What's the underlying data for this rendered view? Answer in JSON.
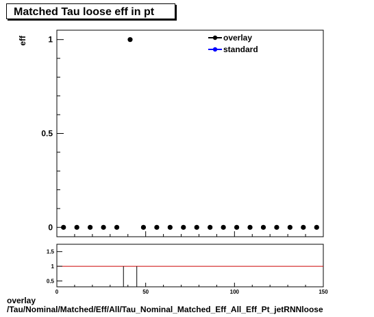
{
  "title": "Matched Tau loose eff in pt",
  "footer": {
    "line1": "overlay",
    "line2": "/Tau/Nominal/Matched/Eff/All/Tau_Nominal_Matched_Eff_All_Eff_Pt_jetRNNloose"
  },
  "colors": {
    "overlay": "#000000",
    "standard": "#0000ff",
    "ratio_line": "#cc0000",
    "frame": "#000000"
  },
  "chart_data": [
    {
      "type": "scatter",
      "ylabel": "eff",
      "xlim": [
        0,
        150
      ],
      "ylim": [
        -0.05,
        1.05
      ],
      "yticks": [
        0,
        0.5,
        1
      ],
      "ytick_labels": [
        "0",
        "0.5",
        "1"
      ],
      "legend_position": "top-right",
      "series": [
        {
          "name": "overlay",
          "marker": "circle",
          "x": [
            3.75,
            11.25,
            18.75,
            26.25,
            33.75,
            41.25,
            48.75,
            56.25,
            63.75,
            71.25,
            78.75,
            86.25,
            93.75,
            101.25,
            108.75,
            116.25,
            123.75,
            131.25,
            138.75,
            146.25
          ],
          "y": [
            0,
            0,
            0,
            0,
            0,
            1,
            0,
            0,
            0,
            0,
            0,
            0,
            0,
            0,
            0,
            0,
            0,
            0,
            0,
            0
          ]
        },
        {
          "name": "standard",
          "marker": "circle",
          "x": [],
          "y": []
        }
      ]
    },
    {
      "type": "line",
      "xlim": [
        0,
        150
      ],
      "ylim": [
        0.3,
        1.75
      ],
      "xticks": [
        0,
        50,
        100,
        150
      ],
      "xtick_labels": [
        "0",
        "50",
        "100",
        "150"
      ],
      "yticks": [
        0.5,
        1,
        1.5
      ],
      "ytick_labels": [
        "0.5",
        "1",
        "1.5"
      ],
      "reference_line": 1,
      "ratio_gap_x": [
        37.5,
        45
      ]
    }
  ]
}
